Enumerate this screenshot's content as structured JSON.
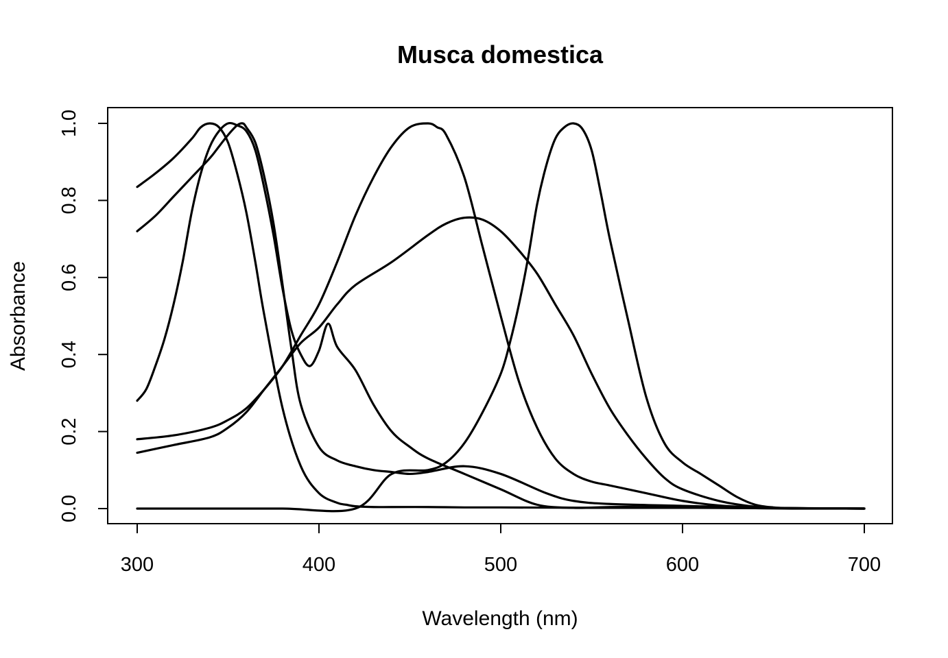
{
  "chart_data": {
    "type": "line",
    "title": "Musca domestica",
    "xlabel": "Wavelength (nm)",
    "ylabel": "Absorbance",
    "xlim": [
      300,
      700
    ],
    "ylim": [
      0,
      1
    ],
    "xticks": [
      "300",
      "400",
      "500",
      "600",
      "700"
    ],
    "yticks": [
      "0.0",
      "0.2",
      "0.4",
      "0.6",
      "0.8",
      "1.0"
    ],
    "xtick_values": [
      300,
      400,
      500,
      600,
      700
    ],
    "ytick_values": [
      0,
      0.2,
      0.4,
      0.6,
      0.8,
      1.0
    ],
    "grid": false,
    "line_color": "#000000",
    "series": [
      {
        "x": [
          300,
          310,
          320,
          330,
          335,
          340,
          345,
          350,
          355,
          360,
          365,
          370,
          380,
          390,
          400,
          410,
          415,
          420,
          430,
          440,
          460,
          480,
          500,
          550,
          600,
          650,
          700
        ],
        "values": [
          0.835,
          0.87,
          0.91,
          0.96,
          0.99,
          1.0,
          0.99,
          0.95,
          0.87,
          0.77,
          0.64,
          0.5,
          0.26,
          0.11,
          0.04,
          0.015,
          0.01,
          0.006,
          0.004,
          0.004,
          0.004,
          0.003,
          0.003,
          0.002,
          0.002,
          0.001,
          0.0
        ]
      },
      {
        "x": [
          300,
          310,
          320,
          330,
          340,
          345,
          350,
          355,
          358,
          360,
          365,
          370,
          375,
          380,
          385,
          390,
          400,
          410,
          420,
          430,
          440,
          450,
          460,
          480,
          500,
          525,
          540,
          560,
          600,
          650,
          700
        ],
        "values": [
          0.72,
          0.76,
          0.81,
          0.86,
          0.91,
          0.94,
          0.97,
          0.995,
          1.0,
          0.99,
          0.95,
          0.86,
          0.74,
          0.58,
          0.41,
          0.27,
          0.16,
          0.125,
          0.11,
          0.1,
          0.095,
          0.09,
          0.095,
          0.11,
          0.09,
          0.04,
          0.02,
          0.012,
          0.007,
          0.002,
          0.0
        ]
      },
      {
        "x": [
          300,
          305,
          310,
          315,
          320,
          325,
          330,
          335,
          340,
          345,
          350,
          355,
          360,
          365,
          370,
          375,
          380,
          385,
          390,
          395,
          400,
          405,
          410,
          420,
          430,
          440,
          450,
          460,
          480,
          500,
          520,
          540,
          560,
          580,
          600,
          620,
          640,
          660,
          700
        ],
        "values": [
          0.28,
          0.31,
          0.37,
          0.44,
          0.53,
          0.64,
          0.77,
          0.87,
          0.94,
          0.98,
          1.0,
          0.995,
          0.98,
          0.93,
          0.83,
          0.71,
          0.57,
          0.46,
          0.4,
          0.37,
          0.41,
          0.48,
          0.42,
          0.36,
          0.27,
          0.2,
          0.16,
          0.13,
          0.09,
          0.05,
          0.01,
          0.002,
          0.004,
          0.004,
          0.003,
          0.002,
          0.001,
          0.0,
          0.0
        ]
      },
      {
        "x": [
          300,
          320,
          340,
          350,
          360,
          370,
          380,
          390,
          400,
          410,
          420,
          430,
          440,
          450,
          460,
          465,
          470,
          480,
          490,
          500,
          510,
          520,
          530,
          540,
          550,
          560,
          580,
          600,
          620,
          640,
          660,
          700
        ],
        "values": [
          0.18,
          0.19,
          0.21,
          0.23,
          0.26,
          0.31,
          0.37,
          0.45,
          0.53,
          0.64,
          0.76,
          0.86,
          0.94,
          0.99,
          1.0,
          0.99,
          0.97,
          0.86,
          0.68,
          0.5,
          0.33,
          0.21,
          0.13,
          0.09,
          0.07,
          0.06,
          0.04,
          0.02,
          0.008,
          0.003,
          0.001,
          0.0
        ]
      },
      {
        "x": [
          300,
          320,
          340,
          350,
          360,
          370,
          380,
          390,
          400,
          410,
          420,
          440,
          460,
          470,
          480,
          490,
          500,
          510,
          520,
          530,
          540,
          550,
          560,
          570,
          580,
          590,
          600,
          620,
          640,
          660,
          700
        ],
        "values": [
          0.145,
          0.165,
          0.185,
          0.21,
          0.25,
          0.31,
          0.37,
          0.43,
          0.47,
          0.53,
          0.58,
          0.64,
          0.71,
          0.74,
          0.755,
          0.75,
          0.72,
          0.67,
          0.61,
          0.53,
          0.45,
          0.35,
          0.26,
          0.19,
          0.13,
          0.08,
          0.05,
          0.02,
          0.005,
          0.001,
          0.0
        ]
      },
      {
        "x": [
          300,
          340,
          380,
          420,
          440,
          460,
          470,
          480,
          490,
          500,
          505,
          510,
          515,
          520,
          525,
          530,
          535,
          540,
          545,
          550,
          555,
          560,
          570,
          580,
          590,
          600,
          610,
          620,
          630,
          640,
          650,
          660,
          700
        ],
        "values": [
          0.0,
          0.0,
          0.0,
          0.0,
          0.09,
          0.1,
          0.12,
          0.17,
          0.25,
          0.35,
          0.43,
          0.53,
          0.65,
          0.79,
          0.89,
          0.96,
          0.99,
          1.0,
          0.985,
          0.93,
          0.82,
          0.7,
          0.49,
          0.29,
          0.17,
          0.12,
          0.09,
          0.06,
          0.03,
          0.01,
          0.003,
          0.001,
          0.0
        ]
      }
    ]
  }
}
